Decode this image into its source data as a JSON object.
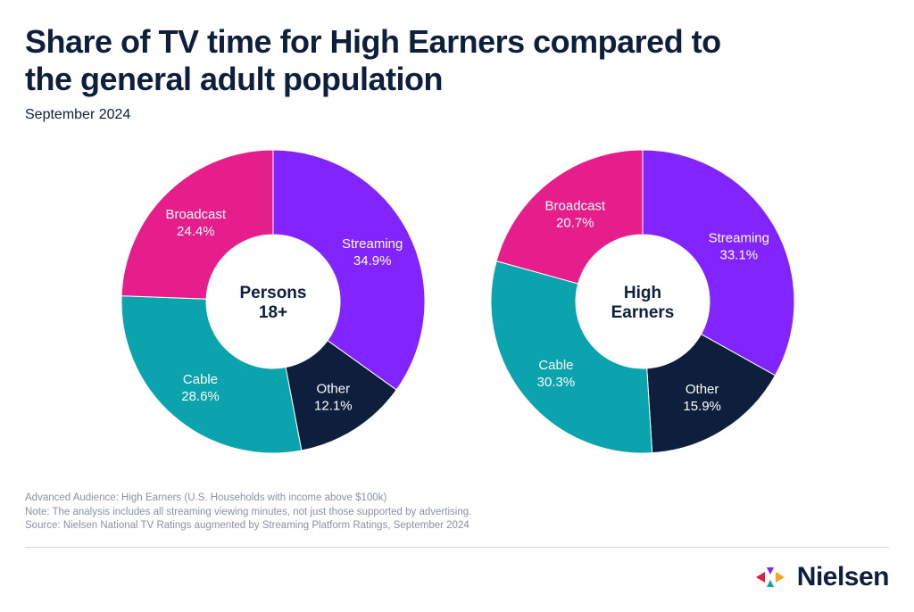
{
  "title": "Share of TV time for High Earners compared to the general adult population",
  "subtitle": "September 2024",
  "chart_data": [
    {
      "type": "pie",
      "donut": true,
      "center_label": [
        "Persons",
        "18+"
      ],
      "slices": [
        {
          "name": "Streaming",
          "value": 34.9,
          "label": "34.9%",
          "color": "#8224ff"
        },
        {
          "name": "Other",
          "value": 12.1,
          "label": "12.1%",
          "color": "#0d1f3d"
        },
        {
          "name": "Cable",
          "value": 28.6,
          "label": "28.6%",
          "color": "#0ba3ad"
        },
        {
          "name": "Broadcast",
          "value": 24.4,
          "label": "24.4%",
          "color": "#e61e8c"
        }
      ]
    },
    {
      "type": "pie",
      "donut": true,
      "center_label": [
        "High",
        "Earners"
      ],
      "slices": [
        {
          "name": "Streaming",
          "value": 33.1,
          "label": "33.1%",
          "color": "#8224ff"
        },
        {
          "name": "Other",
          "value": 15.9,
          "label": "15.9%",
          "color": "#0d1f3d"
        },
        {
          "name": "Cable",
          "value": 30.3,
          "label": "30.3%",
          "color": "#0ba3ad"
        },
        {
          "name": "Broadcast",
          "value": 20.7,
          "label": "20.7%",
          "color": "#e61e8c"
        }
      ]
    }
  ],
  "notes": [
    "Advanced Audience: High Earners (U.S. Households with income above $100k)",
    "Note: The analysis includes all streaming viewing minutes, not just those supported by advertising.",
    "Source: Nielsen National TV Ratings augmented by Streaming Platform Ratings, September 2024"
  ],
  "logo": {
    "text": "Nielsen",
    "colors": [
      "#e61e3c",
      "#8224ff",
      "#0ba3ad",
      "#f5a623"
    ]
  }
}
